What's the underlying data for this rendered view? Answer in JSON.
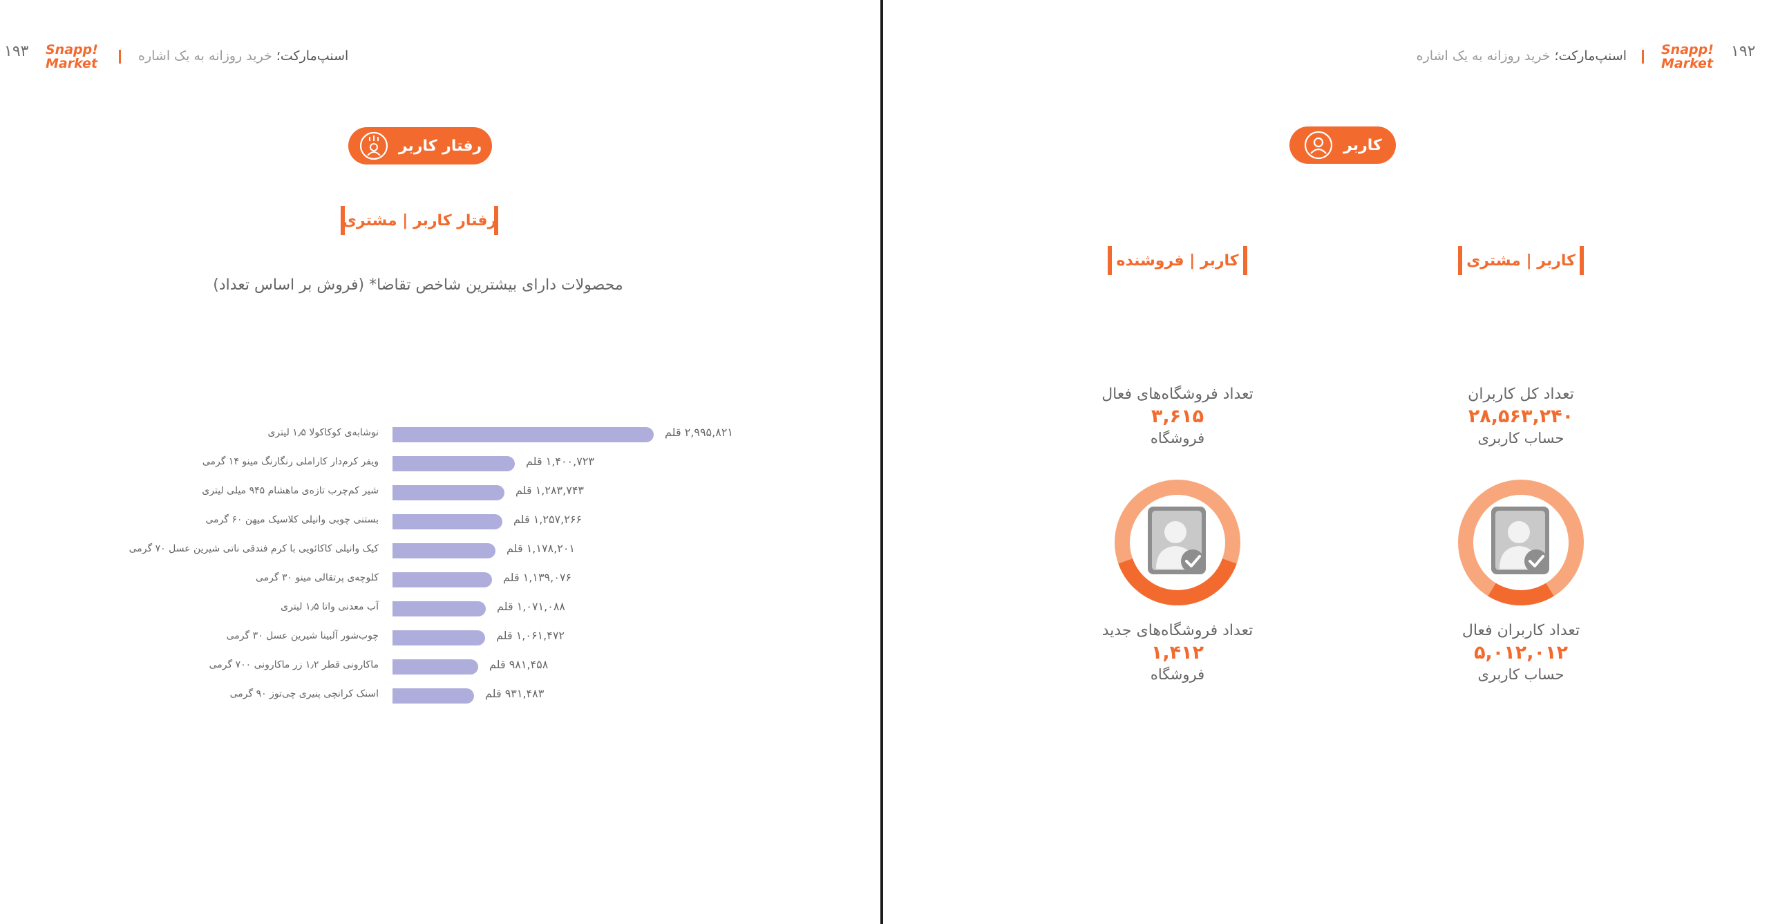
{
  "brand": {
    "logo_line1": "Snapp!",
    "logo_line2": "Market",
    "accent": "#f26a2e",
    "bar_color": "#aeaddc"
  },
  "left_page": {
    "page_number": "۱۹۳",
    "header_brand": "اسنپ‌مارکت؛",
    "header_rest": " خرید روزانه به یک اشاره",
    "pill_label": "رفتار کاربر",
    "pill_icon": "user-behavior-icon",
    "section_label": "رفتار کاربر | مشتری",
    "chart_title": "محصولات دارای بیشترین شاخص تقاضا* (فروش بر اساس تعداد)"
  },
  "chart_data": {
    "type": "bar",
    "orientation": "horizontal",
    "title": "محصولات دارای بیشترین شاخص تقاضا* (فروش بر اساس تعداد)",
    "unit": "قلم",
    "categories": [
      "نوشابه‌ی کوکاکولا ۱٫۵ لیتری",
      "ویفر کرم‌دار کاراملی رنگارنگ مینو ۱۴ گرمی",
      "شیر کم‌چرب تازه‌ی ماهشام ۹۴۵ میلی لیتری",
      "بستنی چوبی وانیلی کلاسیک میهن ۶۰ گرمی",
      "کیک وانیلی کاکائویی با کرم فندقی ناتی شیرین عسل ۷۰ گرمی",
      "کلوچه‌ی پرتقالی مینو ۳۰ گرمی",
      "آب معدنی واتا ۱٫۵ لیتری",
      "چوب‌شور آلبینا شیرین عسل ۳۰ گرمی",
      "ماکارونی قطر ۱٫۲ زر ماکارونی ۷۰۰ گرمی",
      "اسنک کرانچی پنیری چی‌توز ۹۰ گرمی"
    ],
    "values": [
      2995821,
      1400723,
      1283743,
      1257266,
      1178201,
      1139076,
      1071088,
      1061472,
      981458,
      931483
    ],
    "value_labels": [
      "۲,۹۹۵,۸۲۱ قلم",
      "۱,۴۰۰,۷۲۳ قلم",
      "۱,۲۸۳,۷۴۳ قلم",
      "۱,۲۵۷,۲۶۶ قلم",
      "۱,۱۷۸,۲۰۱ قلم",
      "۱,۱۳۹,۰۷۶ قلم",
      "۱,۰۷۱,۰۸۸ قلم",
      "۱,۰۶۱,۴۷۲ قلم",
      "۹۸۱,۴۵۸ قلم",
      "۹۳۱,۴۸۳ قلم"
    ],
    "xlim": [
      0,
      2995821
    ],
    "grid": false,
    "legend": "none"
  },
  "right_page": {
    "page_number": "۱۹۲",
    "header_brand": "اسنپ‌مارکت؛",
    "header_rest": " خرید روزانه به یک اشاره",
    "pill_label": "کاربر",
    "pill_icon": "user-icon",
    "customer": {
      "section_label": "کاربر | مشتری",
      "total_label": "تعداد کل کاربران",
      "total_value": "۲۸,۵۶۳,۲۴۰",
      "total_unit": "حساب کاربری",
      "active_label": "تعداد کاربران فعال",
      "active_value": "۵,۰۱۲,۰۱۲",
      "active_unit": "حساب کاربری",
      "active_fraction": 0.1755,
      "ring_icon": "user-verified-icon"
    },
    "seller": {
      "section_label": "کاربر | فروشنده",
      "total_label": "تعداد فروشگاه‌های فعال",
      "total_value": "۳,۶۱۵",
      "total_unit": "فروشگاه",
      "new_label": "تعداد فروشگاه‌های جدید",
      "new_value": "۱,۴۱۲",
      "new_unit": "فروشگاه",
      "new_fraction": 0.3906,
      "ring_icon": "user-verified-icon"
    },
    "ring_colors": {
      "track": "#f8a77c",
      "fill": "#f26a2e"
    }
  }
}
